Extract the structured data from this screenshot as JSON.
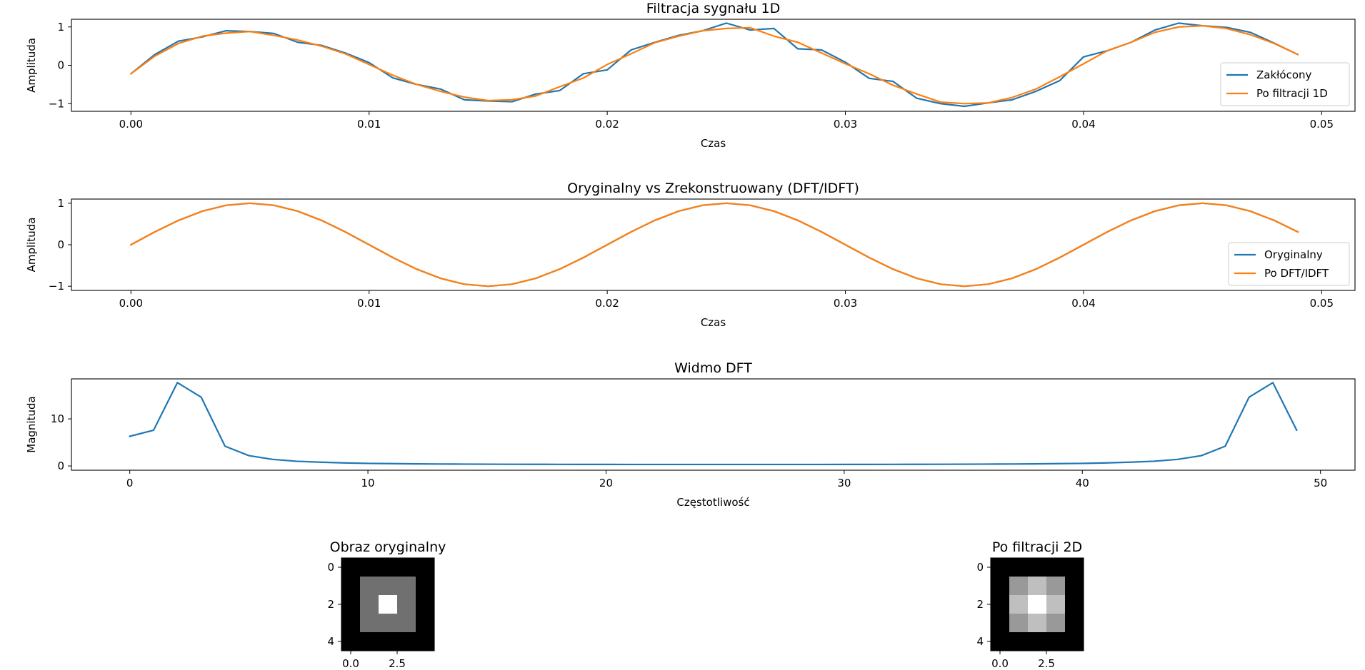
{
  "colors": {
    "blue": "#1f77b4",
    "orange": "#ff7f0e"
  },
  "chart_data": [
    {
      "type": "line",
      "title": "Filtracja sygnału 1D",
      "xlabel": "Czas",
      "ylabel": "Amplituda",
      "xlim": [
        -0.0025,
        0.0514
      ],
      "ylim": [
        -1.2,
        1.2
      ],
      "xticks": [
        0.0,
        0.01,
        0.02,
        0.03,
        0.04,
        0.05
      ],
      "xtick_labels": [
        "0.00",
        "0.01",
        "0.02",
        "0.03",
        "0.04",
        "0.05"
      ],
      "yticks": [
        1,
        0,
        -1
      ],
      "ytick_labels": [
        "1",
        "0",
        "−1"
      ],
      "legend": "right",
      "x": [
        0,
        0.001,
        0.002,
        0.003,
        0.004,
        0.005,
        0.006,
        0.007,
        0.008,
        0.009,
        0.01,
        0.011,
        0.012,
        0.013,
        0.014,
        0.015,
        0.016,
        0.017,
        0.018,
        0.019,
        0.02,
        0.021,
        0.022,
        0.023,
        0.024,
        0.025,
        0.026,
        0.027,
        0.028,
        0.029,
        0.03,
        0.031,
        0.032,
        0.033,
        0.034,
        0.035,
        0.036,
        0.037,
        0.038,
        0.039,
        0.04,
        0.041,
        0.042,
        0.043,
        0.044,
        0.045,
        0.046,
        0.047,
        0.048,
        0.049
      ],
      "series": [
        {
          "name": "Zakłócony",
          "color": "blue",
          "values": [
            -0.22,
            0.28,
            0.63,
            0.74,
            0.9,
            0.88,
            0.83,
            0.6,
            0.52,
            0.32,
            0.07,
            -0.33,
            -0.5,
            -0.62,
            -0.9,
            -0.93,
            -0.95,
            -0.75,
            -0.66,
            -0.22,
            -0.12,
            0.4,
            0.6,
            0.78,
            0.9,
            1.1,
            0.92,
            0.96,
            0.43,
            0.4,
            0.08,
            -0.34,
            -0.42,
            -0.86,
            -1.0,
            -1.07,
            -0.98,
            -0.9,
            -0.68,
            -0.4,
            0.22,
            0.38,
            0.6,
            0.92,
            1.1,
            1.03,
            0.99,
            0.86,
            0.58,
            0.28
          ]
        },
        {
          "name": "Po filtracji 1D",
          "color": "orange",
          "values": [
            -0.22,
            0.24,
            0.57,
            0.76,
            0.84,
            0.88,
            0.78,
            0.66,
            0.5,
            0.3,
            0.02,
            -0.26,
            -0.5,
            -0.68,
            -0.83,
            -0.92,
            -0.9,
            -0.8,
            -0.56,
            -0.33,
            0.02,
            0.3,
            0.59,
            0.76,
            0.9,
            0.96,
            0.98,
            0.76,
            0.6,
            0.32,
            0.04,
            -0.22,
            -0.52,
            -0.75,
            -0.96,
            -1.0,
            -0.98,
            -0.84,
            -0.62,
            -0.3,
            0.04,
            0.38,
            0.6,
            0.86,
            1.0,
            1.03,
            0.96,
            0.8,
            0.57,
            0.28
          ]
        }
      ]
    },
    {
      "type": "line",
      "title": "Oryginalny vs Zrekonstruowany (DFT/IDFT)",
      "xlabel": "Czas",
      "ylabel": "Amplituda",
      "xlim": [
        -0.0025,
        0.0514
      ],
      "ylim": [
        -1.1,
        1.1
      ],
      "xticks": [
        0.0,
        0.01,
        0.02,
        0.03,
        0.04,
        0.05
      ],
      "xtick_labels": [
        "0.00",
        "0.01",
        "0.02",
        "0.03",
        "0.04",
        "0.05"
      ],
      "yticks": [
        1,
        0,
        -1
      ],
      "ytick_labels": [
        "1",
        "0",
        "−1"
      ],
      "legend": "right",
      "x": [
        0,
        0.001,
        0.002,
        0.003,
        0.004,
        0.005,
        0.006,
        0.007,
        0.008,
        0.009,
        0.01,
        0.011,
        0.012,
        0.013,
        0.014,
        0.015,
        0.016,
        0.017,
        0.018,
        0.019,
        0.02,
        0.021,
        0.022,
        0.023,
        0.024,
        0.025,
        0.026,
        0.027,
        0.028,
        0.029,
        0.03,
        0.031,
        0.032,
        0.033,
        0.034,
        0.035,
        0.036,
        0.037,
        0.038,
        0.039,
        0.04,
        0.041,
        0.042,
        0.043,
        0.044,
        0.045,
        0.046,
        0.047,
        0.048,
        0.049
      ],
      "series": [
        {
          "name": "Oryginalny",
          "color": "blue",
          "values": [
            0,
            0.309,
            0.588,
            0.809,
            0.951,
            1.0,
            0.951,
            0.809,
            0.588,
            0.309,
            0,
            -0.309,
            -0.588,
            -0.809,
            -0.951,
            -1.0,
            -0.951,
            -0.809,
            -0.588,
            -0.309,
            0,
            0.309,
            0.588,
            0.809,
            0.951,
            1.0,
            0.951,
            0.809,
            0.588,
            0.309,
            0,
            -0.309,
            -0.588,
            -0.809,
            -0.951,
            -1.0,
            -0.951,
            -0.809,
            -0.588,
            -0.309,
            0,
            0.309,
            0.588,
            0.809,
            0.951,
            1.0,
            0.951,
            0.809,
            0.588,
            0.309
          ]
        },
        {
          "name": "Po DFT/IDFT",
          "color": "orange",
          "values": [
            0,
            0.309,
            0.588,
            0.809,
            0.951,
            1.0,
            0.951,
            0.809,
            0.588,
            0.309,
            0,
            -0.309,
            -0.588,
            -0.809,
            -0.951,
            -1.0,
            -0.951,
            -0.809,
            -0.588,
            -0.309,
            0,
            0.309,
            0.588,
            0.809,
            0.951,
            1.0,
            0.951,
            0.809,
            0.588,
            0.309,
            0,
            -0.309,
            -0.588,
            -0.809,
            -0.951,
            -1.0,
            -0.951,
            -0.809,
            -0.588,
            -0.309,
            0,
            0.309,
            0.588,
            0.809,
            0.951,
            1.0,
            0.951,
            0.809,
            0.588,
            0.309
          ]
        }
      ]
    },
    {
      "type": "line",
      "title": "Widmo DFT",
      "xlabel": "Częstotliwość",
      "ylabel": "Magnituda",
      "xlim": [
        -2.45,
        51.45
      ],
      "ylim": [
        -0.9,
        18.5
      ],
      "xticks": [
        0,
        10,
        20,
        30,
        40,
        50
      ],
      "xtick_labels": [
        "0",
        "10",
        "20",
        "30",
        "40",
        "50"
      ],
      "yticks": [
        10,
        0
      ],
      "ytick_labels": [
        "10",
        "0"
      ],
      "x": [
        0,
        1,
        2,
        3,
        4,
        5,
        6,
        7,
        8,
        9,
        10,
        11,
        12,
        13,
        14,
        15,
        16,
        17,
        18,
        19,
        20,
        21,
        22,
        23,
        24,
        25,
        26,
        27,
        28,
        29,
        30,
        31,
        32,
        33,
        34,
        35,
        36,
        37,
        38,
        39,
        40,
        41,
        42,
        43,
        44,
        45,
        46,
        47,
        48,
        49
      ],
      "series": [
        {
          "color": "blue",
          "values": [
            6.3,
            7.6,
            17.7,
            14.6,
            4.2,
            2.2,
            1.4,
            1.0,
            0.8,
            0.65,
            0.55,
            0.5,
            0.45,
            0.42,
            0.4,
            0.38,
            0.36,
            0.35,
            0.34,
            0.33,
            0.33,
            0.32,
            0.32,
            0.32,
            0.32,
            0.32,
            0.32,
            0.32,
            0.32,
            0.32,
            0.33,
            0.33,
            0.34,
            0.35,
            0.36,
            0.38,
            0.4,
            0.42,
            0.45,
            0.5,
            0.55,
            0.65,
            0.8,
            1.0,
            1.4,
            2.2,
            4.2,
            14.6,
            17.7,
            7.6
          ]
        }
      ]
    },
    {
      "type": "heatmap",
      "title": "Obraz oryginalny",
      "xticks": [
        0.0,
        2.5
      ],
      "xtick_labels": [
        "0.0",
        "2.5"
      ],
      "yticks": [
        0,
        2,
        4
      ],
      "ytick_labels": [
        "0",
        "2",
        "4"
      ],
      "colormap": "gray",
      "values": [
        [
          0,
          0,
          0,
          0,
          0
        ],
        [
          0,
          0.44,
          0.44,
          0.44,
          0
        ],
        [
          0,
          0.44,
          1.0,
          0.44,
          0
        ],
        [
          0,
          0.44,
          0.44,
          0.44,
          0
        ],
        [
          0,
          0,
          0,
          0,
          0
        ]
      ]
    },
    {
      "type": "heatmap",
      "title": "Po filtracji 2D",
      "xticks": [
        0.0,
        2.5
      ],
      "xtick_labels": [
        "0.0",
        "2.5"
      ],
      "yticks": [
        0,
        2,
        4
      ],
      "ytick_labels": [
        "0",
        "2",
        "4"
      ],
      "colormap": "gray",
      "values": [
        [
          0,
          0,
          0,
          0,
          0
        ],
        [
          0,
          0.6,
          0.75,
          0.6,
          0
        ],
        [
          0,
          0.75,
          1.0,
          0.75,
          0
        ],
        [
          0,
          0.6,
          0.75,
          0.6,
          0
        ],
        [
          0,
          0,
          0,
          0,
          0
        ]
      ]
    }
  ]
}
